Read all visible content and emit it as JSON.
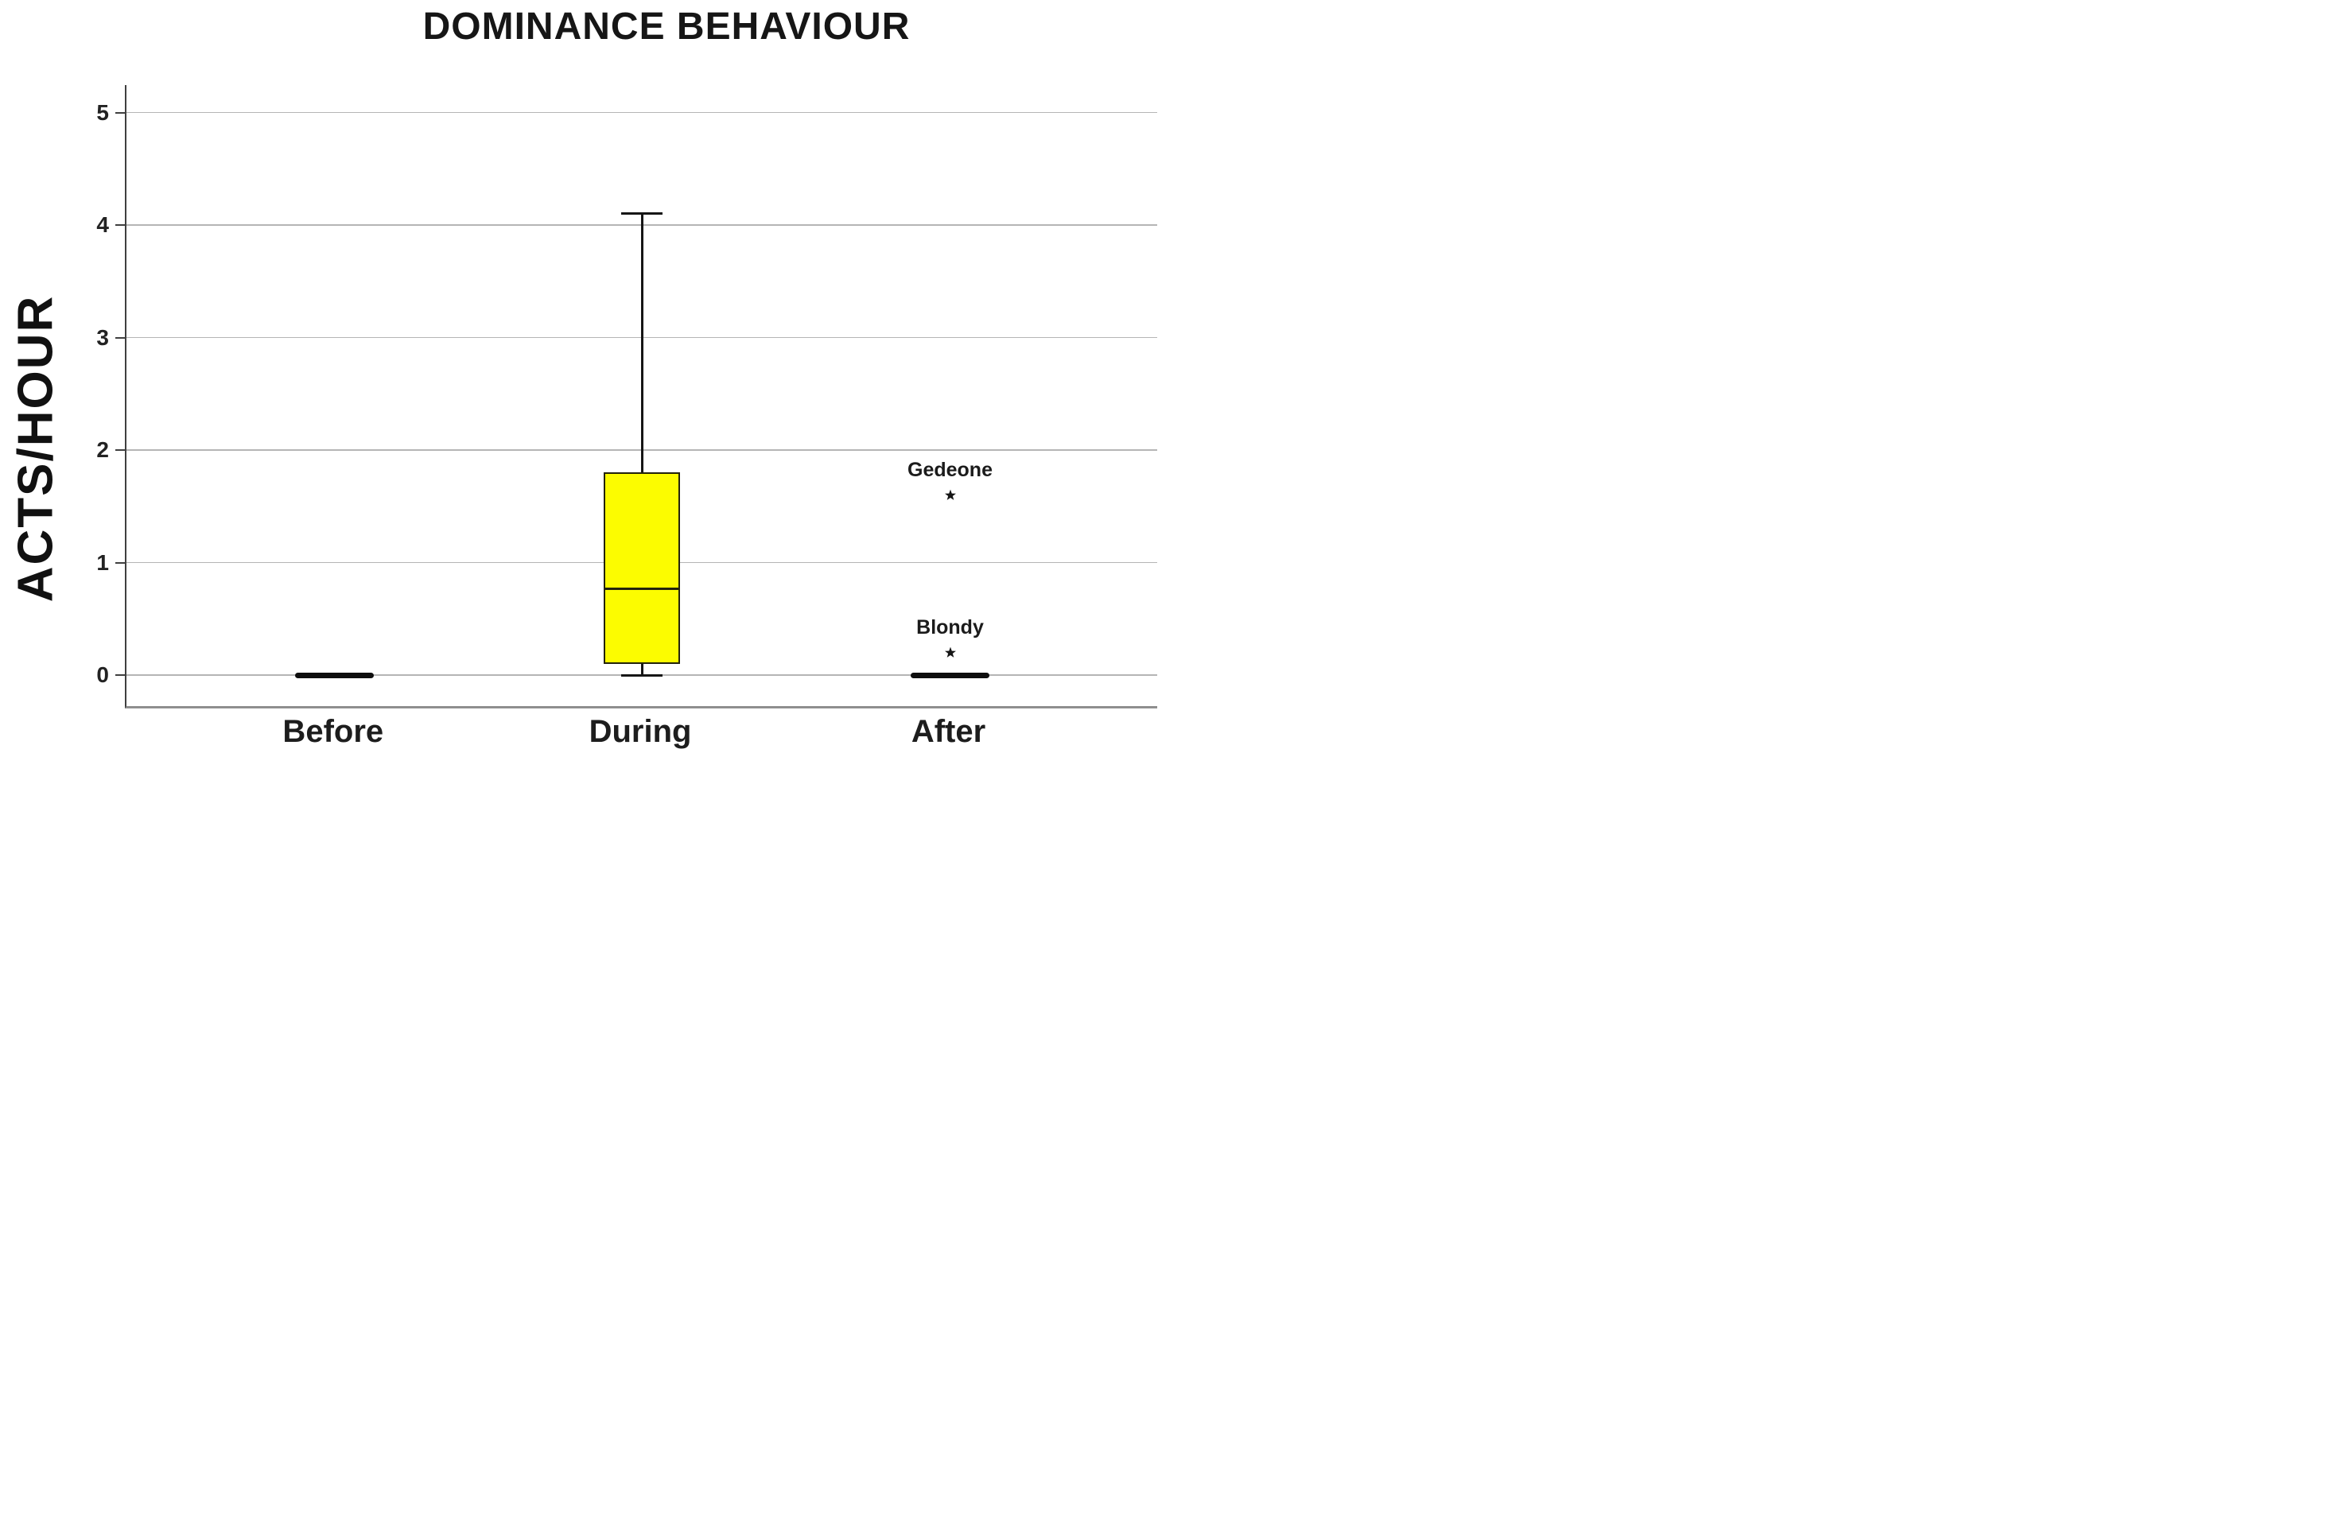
{
  "chart_data": {
    "type": "boxplot",
    "title": "DOMINANCE BEHAVIOUR",
    "ylabel": "ACTS/HOUR",
    "xlabel": "",
    "categories": [
      "Before",
      "During",
      "After"
    ],
    "yticks": [
      0,
      1,
      2,
      3,
      4,
      5
    ],
    "ylim": [
      0,
      5.25
    ],
    "grid": "horizontal-gridlines-on",
    "legend": null,
    "boxes": [
      {
        "category": "Before",
        "min": 0,
        "q1": 0,
        "median": 0,
        "q3": 0,
        "max": 0,
        "outliers": []
      },
      {
        "category": "During",
        "min": 0,
        "q1": 0.1,
        "median": 0.77,
        "q3": 1.8,
        "max": 4.1,
        "outliers": []
      },
      {
        "category": "After",
        "min": 0,
        "q1": 0,
        "median": 0,
        "q3": 0,
        "max": 0,
        "outliers": [
          {
            "label": "Gedeone",
            "value": 1.6,
            "marker": "star"
          },
          {
            "label": "Blondy",
            "value": 0.2,
            "marker": "star"
          }
        ]
      }
    ],
    "colors": {
      "box_fill": "#fcfc00",
      "box_border": "#23230b",
      "whisker": "#161616",
      "zero_bar": "#0e0e0e",
      "gridline": "#b5b5b5",
      "axis_line": "#3f3f3f",
      "frame_bottom": "#8f8f8f",
      "text": "#1c1c1c"
    }
  }
}
